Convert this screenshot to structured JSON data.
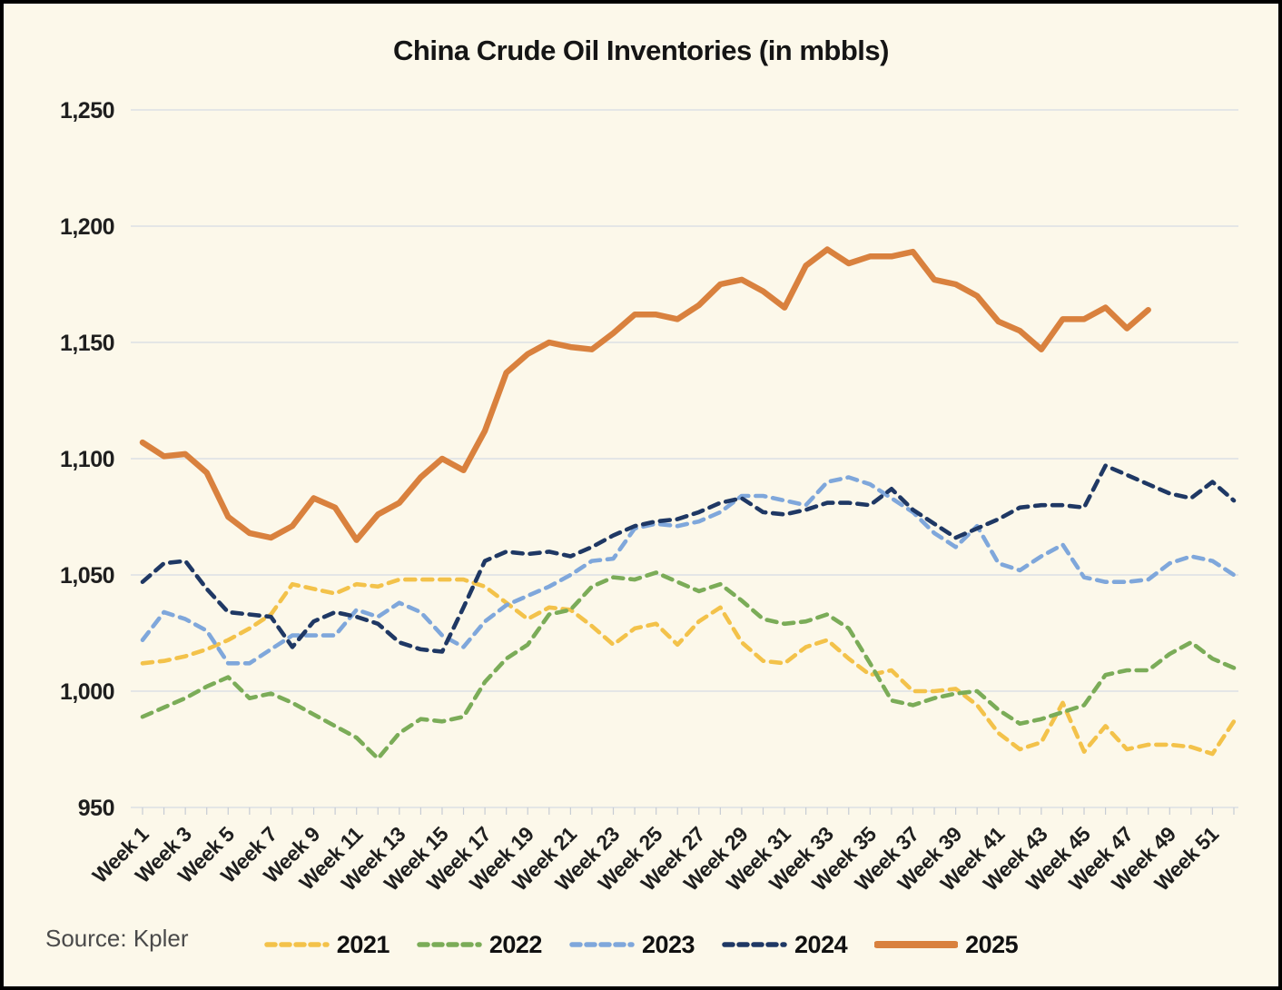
{
  "source": "Source: Kpler",
  "colors": {
    "background": "#FCF8EA",
    "gridline": "#dbdfe5",
    "text": "#1f1f1f",
    "source_text": "#4a4a4a"
  },
  "chart_data": {
    "type": "line",
    "title": "China Crude Oil Inventories (in mbbls)",
    "xlabel": "",
    "ylabel": "",
    "ylim": [
      950,
      1250
    ],
    "y_ticks": [
      950,
      1000,
      1050,
      1100,
      1150,
      1200,
      1250
    ],
    "grid": true,
    "legend_position": "bottom",
    "weeks_total": 52,
    "x_tick_labels": [
      "Week 1",
      "Week 3",
      "Week 5",
      "Week 7",
      "Week 9",
      "Week 11",
      "Week 13",
      "Week 15",
      "Week 17",
      "Week 19",
      "Week 21",
      "Week 23",
      "Week 25",
      "Week 27",
      "Week 29",
      "Week 31",
      "Week 33",
      "Week 35",
      "Week 37",
      "Week 39",
      "Week 41",
      "Week 43",
      "Week 45",
      "Week 47",
      "Week 49",
      "Week 51"
    ],
    "series": [
      {
        "name": "2021",
        "color": "#F3C24A",
        "dashed": true,
        "values": [
          1012,
          1013,
          1015,
          1018,
          1022,
          1027,
          1033,
          1046,
          1044,
          1042,
          1046,
          1045,
          1048,
          1048,
          1048,
          1048,
          1045,
          1038,
          1031,
          1036,
          1035,
          1028,
          1020,
          1027,
          1029,
          1020,
          1030,
          1036,
          1021,
          1013,
          1012,
          1019,
          1022,
          1014,
          1007,
          1009,
          1000,
          1000,
          1001,
          994,
          982,
          975,
          978,
          995,
          974,
          985,
          975,
          977,
          977,
          976,
          973,
          987
        ]
      },
      {
        "name": "2022",
        "color": "#7BAC58",
        "dashed": true,
        "values": [
          989,
          993,
          997,
          1002,
          1006,
          997,
          999,
          995,
          990,
          985,
          980,
          971,
          982,
          988,
          987,
          989,
          1004,
          1014,
          1020,
          1033,
          1035,
          1045,
          1049,
          1048,
          1051,
          1047,
          1043,
          1046,
          1039,
          1031,
          1029,
          1030,
          1033,
          1027,
          1012,
          996,
          994,
          997,
          999,
          1000,
          992,
          986,
          988,
          991,
          994,
          1007,
          1009,
          1009,
          1016,
          1021,
          1014,
          1010
        ]
      },
      {
        "name": "2023",
        "color": "#7FA7DB",
        "dashed": true,
        "values": [
          1022,
          1034,
          1031,
          1026,
          1012,
          1012,
          1018,
          1024,
          1024,
          1024,
          1035,
          1032,
          1038,
          1034,
          1024,
          1019,
          1030,
          1037,
          1041,
          1045,
          1050,
          1056,
          1057,
          1070,
          1072,
          1071,
          1073,
          1077,
          1084,
          1084,
          1082,
          1080,
          1090,
          1092,
          1089,
          1083,
          1077,
          1068,
          1062,
          1071,
          1055,
          1052,
          1058,
          1063,
          1049,
          1047,
          1047,
          1048,
          1055,
          1058,
          1056,
          1050
        ]
      },
      {
        "name": "2024",
        "color": "#1F3864",
        "dashed": true,
        "values": [
          1047,
          1055,
          1056,
          1044,
          1034,
          1033,
          1032,
          1019,
          1030,
          1034,
          1032,
          1029,
          1021,
          1018,
          1017,
          1036,
          1056,
          1060,
          1059,
          1060,
          1058,
          1062,
          1067,
          1071,
          1073,
          1074,
          1077,
          1081,
          1083,
          1077,
          1076,
          1078,
          1081,
          1081,
          1080,
          1087,
          1078,
          1072,
          1066,
          1070,
          1074,
          1079,
          1080,
          1080,
          1079,
          1097,
          1093,
          1089,
          1085,
          1083,
          1090,
          1082
        ]
      },
      {
        "name": "2025",
        "color": "#D9813E",
        "dashed": false,
        "values": [
          1107,
          1101,
          1102,
          1094,
          1075,
          1068,
          1066,
          1071,
          1083,
          1079,
          1065,
          1076,
          1081,
          1092,
          1100,
          1095,
          1112,
          1137,
          1145,
          1150,
          1148,
          1147,
          1154,
          1162,
          1162,
          1160,
          1166,
          1175,
          1177,
          1172,
          1165,
          1183,
          1190,
          1184,
          1187,
          1187,
          1189,
          1177,
          1175,
          1170,
          1159,
          1155,
          1147,
          1160,
          1160,
          1165,
          1156,
          1164
        ]
      }
    ]
  }
}
